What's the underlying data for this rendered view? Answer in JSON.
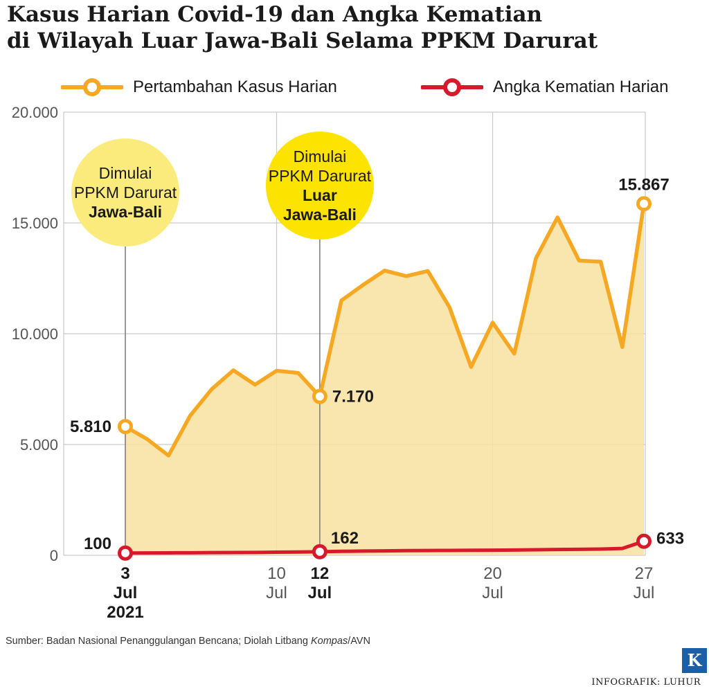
{
  "title_line1": "Kasus Harian Covid-19 dan Angka Kematian",
  "title_line2": "di Wilayah Luar Jawa-Bali Selama PPKM Darurat",
  "legend": {
    "cases": "Pertambahan Kasus Harian",
    "deaths": "Angka Kematian Harian"
  },
  "colors": {
    "cases_line": "#f7a823",
    "cases_fill": "#f7e2a0",
    "deaths_line": "#d7192b",
    "grid": "#c9c9c9",
    "bubble_1": "#fbeb7c",
    "bubble_2": "#fde300",
    "marker_line": "#777777"
  },
  "chart_data": {
    "type": "line",
    "title": "Kasus Harian Covid-19 dan Angka Kematian di Wilayah Luar Jawa-Bali Selama PPKM Darurat",
    "x": [
      "2021-07-03",
      "2021-07-04",
      "2021-07-05",
      "2021-07-06",
      "2021-07-07",
      "2021-07-08",
      "2021-07-09",
      "2021-07-10",
      "2021-07-11",
      "2021-07-12",
      "2021-07-13",
      "2021-07-14",
      "2021-07-15",
      "2021-07-16",
      "2021-07-17",
      "2021-07-18",
      "2021-07-19",
      "2021-07-20",
      "2021-07-21",
      "2021-07-22",
      "2021-07-23",
      "2021-07-24",
      "2021-07-25",
      "2021-07-26",
      "2021-07-27"
    ],
    "series": [
      {
        "name": "Pertambahan Kasus Harian",
        "values": [
          5810,
          5250,
          4500,
          6300,
          7500,
          8350,
          7700,
          8330,
          8230,
          7170,
          11500,
          12200,
          12850,
          12600,
          12830,
          11200,
          8500,
          10500,
          9100,
          13400,
          15250,
          13300,
          13250,
          9400,
          15867
        ]
      },
      {
        "name": "Angka Kematian Harian",
        "values": [
          100,
          105,
          110,
          115,
          120,
          125,
          130,
          140,
          150,
          162,
          180,
          190,
          200,
          210,
          215,
          220,
          225,
          230,
          240,
          250,
          260,
          270,
          280,
          310,
          633
        ]
      }
    ],
    "ylim": [
      0,
      20000
    ],
    "yticks": [
      "0",
      "5.000",
      "10.000",
      "15.000",
      "20.000"
    ],
    "yticks_values": [
      0,
      5000,
      10000,
      15000,
      20000
    ],
    "xticks": [
      {
        "date": "2021-07-03",
        "lines": [
          "3",
          "Jul",
          "2021"
        ],
        "bold": true
      },
      {
        "date": "2021-07-10",
        "lines": [
          "10",
          "Jul"
        ],
        "bold": false
      },
      {
        "date": "2021-07-12",
        "lines": [
          "12",
          "Jul"
        ],
        "bold": true
      },
      {
        "date": "2021-07-20",
        "lines": [
          "20",
          "Jul"
        ],
        "bold": false
      },
      {
        "date": "2021-07-27",
        "lines": [
          "27",
          "Jul"
        ],
        "bold": false
      }
    ],
    "grid": true,
    "legend_position": "top",
    "data_labels": [
      {
        "series": 0,
        "date": "2021-07-03",
        "text": "5.810"
      },
      {
        "series": 0,
        "date": "2021-07-12",
        "text": "7.170"
      },
      {
        "series": 0,
        "date": "2021-07-27",
        "text": "15.867"
      },
      {
        "series": 1,
        "date": "2021-07-03",
        "text": "100"
      },
      {
        "series": 1,
        "date": "2021-07-12",
        "text": "162"
      },
      {
        "series": 1,
        "date": "2021-07-27",
        "text": "633"
      }
    ],
    "annotations": [
      {
        "date": "2021-07-03",
        "lines": [
          "Dimulai",
          "PPKM Darurat"
        ],
        "bold_lines": [
          "Jawa-Bali"
        ]
      },
      {
        "date": "2021-07-12",
        "lines": [
          "Dimulai",
          "PPKM Darurat"
        ],
        "bold_lines": [
          "Luar",
          "Jawa-Bali"
        ]
      }
    ]
  },
  "source_prefix": "Sumber: Badan Nasional Penanggulangan Bencana; Diolah Litbang ",
  "source_italic": "Kompas",
  "source_suffix": "/AVN",
  "credit": "INFOGRAFIK: LUHUR",
  "logo_letter": "K"
}
